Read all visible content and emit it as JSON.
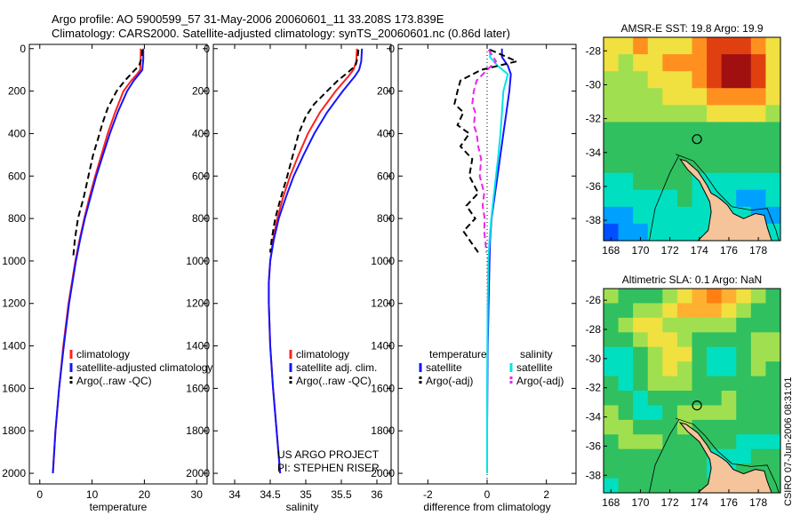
{
  "header": {
    "title_line1": "Argo profile: AO 5900599_57 31-May-2006 20060601_11 33.208S 173.839E",
    "title_line2": "Climatology: CARS2000. Satellite-adjusted climatology: synTS_20060601.nc (0.86d later)"
  },
  "side_stamp": "CSIRO 07-Jun-2006 08:31:01",
  "colors": {
    "climatology": "#ff2020",
    "satellite": "#1414ff",
    "argo": "#000000",
    "salinity_satellite": "#00e5e5",
    "salinity_argo": "#ee22ee",
    "land": "#f5c49a"
  },
  "chart_data": [
    {
      "type": "line",
      "id": "temperature",
      "xlabel": "temperature",
      "ylabel": "",
      "xlim": [
        -2,
        32
      ],
      "ylim": [
        2050,
        -20
      ],
      "xticks": [
        0,
        10,
        20,
        30
      ],
      "yticks": [
        0,
        200,
        400,
        600,
        800,
        1000,
        1200,
        1400,
        1600,
        1800,
        2000
      ],
      "legend_loc": "lower-right",
      "legend": [
        "climatology",
        "satellite-adjusted climatology",
        "Argo(..raw -QC)"
      ],
      "series": [
        {
          "name": "climatology",
          "style": "solid",
          "depth": [
            0,
            50,
            100,
            120,
            150,
            200,
            300,
            400,
            500,
            600,
            700,
            800,
            900,
            1000,
            1200,
            1400,
            1600,
            1800,
            2000
          ],
          "values": [
            19.3,
            19.3,
            19.2,
            18.6,
            17.5,
            16.0,
            14.4,
            13.0,
            11.8,
            10.6,
            9.5,
            8.5,
            7.6,
            6.8,
            5.5,
            4.5,
            3.7,
            3.0,
            2.5
          ]
        },
        {
          "name": "satellite-adjusted climatology",
          "style": "solid",
          "depth": [
            0,
            50,
            100,
            120,
            150,
            200,
            300,
            400,
            500,
            600,
            700,
            800,
            900,
            1000,
            1200,
            1400,
            1600,
            1800,
            2000
          ],
          "values": [
            19.8,
            19.8,
            19.6,
            19.0,
            18.0,
            16.7,
            14.9,
            13.4,
            12.1,
            10.8,
            9.7,
            8.6,
            7.7,
            6.9,
            5.6,
            4.6,
            3.7,
            3.0,
            2.5
          ]
        },
        {
          "name": "Argo(..raw -QC)",
          "style": "dashed",
          "depth": [
            5,
            40,
            80,
            110,
            150,
            200,
            280,
            350,
            420,
            500,
            600,
            700,
            800,
            900,
            980
          ],
          "values": [
            19.6,
            19.5,
            19.0,
            17.8,
            16.3,
            14.7,
            13.0,
            12.0,
            11.2,
            10.2,
            9.3,
            8.4,
            7.3,
            6.7,
            6.4
          ]
        }
      ]
    },
    {
      "type": "line",
      "id": "salinity",
      "xlabel": "salinity",
      "ylabel": "",
      "xlim": [
        33.7,
        36.2
      ],
      "ylim": [
        2050,
        -20
      ],
      "xticks": [
        34,
        34.5,
        35,
        35.5,
        36
      ],
      "yticks": [
        0,
        200,
        400,
        600,
        800,
        1000,
        1200,
        1400,
        1600,
        1800,
        2000
      ],
      "legend_loc": "lower-right",
      "legend": [
        "climatology",
        "satellite adj. clim.",
        "Argo(..raw -QC)"
      ],
      "annotation": [
        "US ARGO PROJECT",
        "PI: STEPHEN RISER"
      ],
      "series": [
        {
          "name": "climatology",
          "style": "solid",
          "depth": [
            0,
            60,
            100,
            130,
            200,
            300,
            400,
            500,
            600,
            700,
            800,
            900,
            1000,
            1100,
            1200,
            1400,
            1600,
            1800,
            2000
          ],
          "values": [
            35.72,
            35.71,
            35.67,
            35.6,
            35.42,
            35.2,
            35.03,
            34.9,
            34.78,
            34.68,
            34.6,
            34.54,
            34.5,
            34.48,
            34.48,
            34.5,
            34.54,
            34.59,
            34.64
          ]
        },
        {
          "name": "satellite adj. clim.",
          "style": "solid",
          "depth": [
            0,
            60,
            100,
            130,
            200,
            300,
            400,
            500,
            600,
            700,
            800,
            900,
            1000,
            1100,
            1200,
            1400,
            1600,
            1800,
            2000
          ],
          "values": [
            35.79,
            35.78,
            35.75,
            35.69,
            35.52,
            35.3,
            35.12,
            34.97,
            34.83,
            34.72,
            34.62,
            34.55,
            34.5,
            34.48,
            34.48,
            34.5,
            34.54,
            34.59,
            34.64
          ]
        },
        {
          "name": "Argo(..raw -QC)",
          "style": "dashed",
          "depth": [
            5,
            40,
            80,
            110,
            150,
            200,
            260,
            320,
            400,
            500,
            600,
            700,
            800,
            900,
            960
          ],
          "values": [
            35.74,
            35.73,
            35.7,
            35.6,
            35.45,
            35.3,
            35.12,
            35.0,
            34.9,
            34.82,
            34.74,
            34.65,
            34.57,
            34.52,
            34.5
          ]
        }
      ]
    },
    {
      "type": "line",
      "id": "difference",
      "xlabel": "difference from climatology",
      "ylabel": "",
      "xlim": [
        -3,
        3
      ],
      "ylim": [
        2050,
        -20
      ],
      "xticks": [
        -2,
        0,
        2
      ],
      "yticks": [
        0,
        200,
        400,
        600,
        800,
        1000,
        1200,
        1400,
        1600,
        1800,
        2000
      ],
      "legend_loc": "lower-center",
      "legend_groups": [
        {
          "title": "temperature",
          "items": [
            "satellite",
            "Argo(-adj)"
          ]
        },
        {
          "title": "salinity",
          "items": [
            "satellite",
            "Argo(-adj)"
          ]
        }
      ],
      "series": [
        {
          "name": "temperature satellite",
          "style": "solid",
          "depth": [
            0,
            40,
            80,
            120,
            200,
            300,
            400,
            500,
            600,
            700,
            800,
            900,
            1000,
            1200,
            1400,
            1600,
            1800,
            2000
          ],
          "values": [
            0.5,
            0.5,
            0.7,
            0.8,
            0.75,
            0.65,
            0.55,
            0.45,
            0.35,
            0.25,
            0.15,
            0.1,
            0.08,
            0.05,
            0.02,
            0.01,
            0.0,
            0.0
          ]
        },
        {
          "name": "salinity satellite",
          "style": "solid",
          "depth": [
            0,
            40,
            80,
            120,
            200,
            300,
            400,
            500,
            600,
            700,
            800,
            900,
            1000,
            1200,
            1400,
            1600,
            1800,
            2000
          ],
          "values": [
            0.1,
            0.1,
            0.35,
            0.7,
            0.55,
            0.5,
            0.45,
            0.38,
            0.3,
            0.22,
            0.14,
            0.08,
            0.04,
            0.02,
            0.01,
            0.0,
            0.0,
            0.0
          ]
        },
        {
          "name": "temperature Argo(-adj)",
          "style": "dashed",
          "depth": [
            5,
            60,
            100,
            150,
            200,
            260,
            300,
            360,
            400,
            460,
            520,
            600,
            680,
            740,
            800,
            860,
            920,
            960
          ],
          "values": [
            0.1,
            1.0,
            -0.2,
            -0.9,
            -1.0,
            -1.1,
            -0.8,
            -1.0,
            -0.6,
            -0.9,
            -0.5,
            -0.6,
            -0.3,
            -0.7,
            -0.4,
            -0.8,
            -0.5,
            -0.3
          ]
        },
        {
          "name": "salinity Argo(-adj)",
          "style": "dashed",
          "depth": [
            5,
            60,
            100,
            150,
            200,
            260,
            300,
            360,
            400,
            460,
            520,
            600,
            680,
            740,
            800,
            860,
            920,
            960
          ],
          "values": [
            0.05,
            0.3,
            0.0,
            -0.35,
            -0.45,
            -0.5,
            -0.4,
            -0.45,
            -0.35,
            -0.3,
            -0.2,
            -0.25,
            -0.1,
            -0.15,
            -0.08,
            -0.1,
            -0.05,
            -0.03
          ]
        }
      ]
    },
    {
      "type": "heatmap",
      "id": "sst-map",
      "title": "AMSR-E SST: 19.8 Argo: 19.9",
      "xlim": [
        167.5,
        179.5
      ],
      "ylim": [
        -39.2,
        -27.2
      ],
      "xticks": [
        168,
        170,
        172,
        174,
        176,
        178
      ],
      "yticks": [
        -28,
        -30,
        -32,
        -34,
        -36,
        -38
      ],
      "colorscale": [
        "#0050ff",
        "#00a0ff",
        "#00e0c0",
        "#30c060",
        "#a0e050",
        "#f0e040",
        "#ff9020",
        "#e04010",
        "#a01010"
      ],
      "grid_rows": [
        [
          5,
          5,
          6,
          5,
          5,
          5,
          6,
          7,
          7,
          7,
          6,
          5
        ],
        [
          5,
          4,
          5,
          5,
          6,
          6,
          6,
          7,
          8,
          8,
          7,
          5
        ],
        [
          4,
          4,
          4,
          5,
          5,
          5,
          6,
          7,
          8,
          8,
          7,
          5
        ],
        [
          4,
          4,
          4,
          4,
          5,
          5,
          5,
          6,
          6,
          6,
          6,
          5
        ],
        [
          4,
          4,
          4,
          4,
          4,
          4,
          4,
          5,
          5,
          5,
          5,
          4
        ],
        [
          3,
          3,
          3,
          3,
          3,
          3,
          3,
          3,
          3,
          3,
          3,
          3
        ],
        [
          3,
          3,
          3,
          3,
          3,
          3,
          3,
          3,
          3,
          3,
          3,
          3
        ],
        [
          3,
          3,
          3,
          3,
          3,
          3,
          3,
          3,
          3,
          3,
          3,
          3
        ],
        [
          2,
          2,
          3,
          3,
          3,
          3,
          2,
          2,
          2,
          2,
          2,
          2
        ],
        [
          2,
          2,
          2,
          2,
          2,
          3,
          2,
          2,
          2,
          1,
          1,
          2
        ],
        [
          1,
          1,
          2,
          2,
          2,
          2,
          2,
          2,
          2,
          2,
          1,
          1
        ],
        [
          0,
          1,
          1,
          2,
          2,
          2,
          2,
          2,
          2,
          2,
          2,
          2
        ]
      ],
      "float_position": {
        "lon": 173.839,
        "lat": -33.208
      }
    },
    {
      "type": "heatmap",
      "id": "sla-map",
      "title": "Altimetric SLA: 0.1 Argo: NaN",
      "xlim": [
        167.5,
        179.5
      ],
      "ylim": [
        -39.2,
        -25.2
      ],
      "xticks": [
        168,
        170,
        172,
        174,
        176,
        178
      ],
      "yticks": [
        -26,
        -28,
        -30,
        -32,
        -34,
        -36,
        -38
      ],
      "colorscale": [
        "#00a0ff",
        "#00e0c0",
        "#30c060",
        "#a0e050",
        "#f0e040",
        "#ffb030",
        "#ff8010"
      ],
      "grid_rows": [
        [
          3,
          2,
          2,
          2,
          3,
          4,
          5,
          6,
          5,
          4,
          3,
          2
        ],
        [
          2,
          2,
          3,
          3,
          4,
          5,
          5,
          5,
          4,
          3,
          2,
          2
        ],
        [
          2,
          3,
          4,
          4,
          3,
          3,
          3,
          3,
          3,
          2,
          2,
          2
        ],
        [
          2,
          2,
          3,
          4,
          4,
          3,
          2,
          2,
          2,
          2,
          3,
          3
        ],
        [
          1,
          1,
          2,
          3,
          4,
          4,
          2,
          1,
          1,
          2,
          3,
          3
        ],
        [
          1,
          1,
          2,
          3,
          4,
          3,
          2,
          1,
          1,
          2,
          3,
          2
        ],
        [
          2,
          1,
          2,
          3,
          3,
          3,
          2,
          2,
          2,
          2,
          2,
          2
        ],
        [
          2,
          2,
          1,
          2,
          2,
          2,
          2,
          2,
          3,
          2,
          2,
          2
        ],
        [
          3,
          2,
          1,
          1,
          2,
          3,
          3,
          3,
          3,
          2,
          2,
          2
        ],
        [
          3,
          3,
          2,
          2,
          2,
          3,
          2,
          2,
          2,
          2,
          2,
          2
        ],
        [
          2,
          3,
          3,
          3,
          2,
          2,
          2,
          2,
          2,
          1,
          1,
          1
        ],
        [
          2,
          2,
          2,
          2,
          2,
          2,
          2,
          1,
          1,
          1,
          2,
          2
        ],
        [
          2,
          2,
          2,
          2,
          2,
          2,
          2,
          1,
          1,
          2,
          2,
          2
        ],
        [
          1,
          2,
          2,
          2,
          2,
          2,
          2,
          2,
          2,
          2,
          2,
          2
        ]
      ],
      "float_position": {
        "lon": 173.839,
        "lat": -33.208
      }
    }
  ]
}
